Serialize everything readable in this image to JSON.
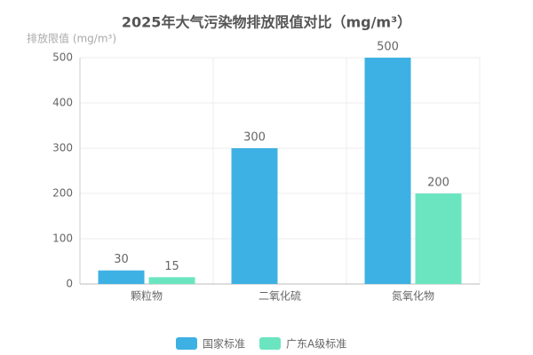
{
  "chart_data": {
    "type": "bar",
    "title": "2025年大气污染物排放限值对比（mg/m³）",
    "y_label": "排放限值 (mg/m³)",
    "categories": [
      "颗粒物",
      "二氧化硫",
      "氮氧化物"
    ],
    "series": [
      {
        "name": "国家标准",
        "color": "#3eb1e4",
        "values": [
          30,
          300,
          500
        ]
      },
      {
        "name": "广东A级标准",
        "color": "#6be5c0",
        "values": [
          15,
          null,
          200
        ]
      }
    ],
    "ylim": [
      0,
      500
    ],
    "yticks": [
      0,
      100,
      200,
      300,
      400,
      500
    ],
    "grid": true,
    "legend": "bottom"
  }
}
